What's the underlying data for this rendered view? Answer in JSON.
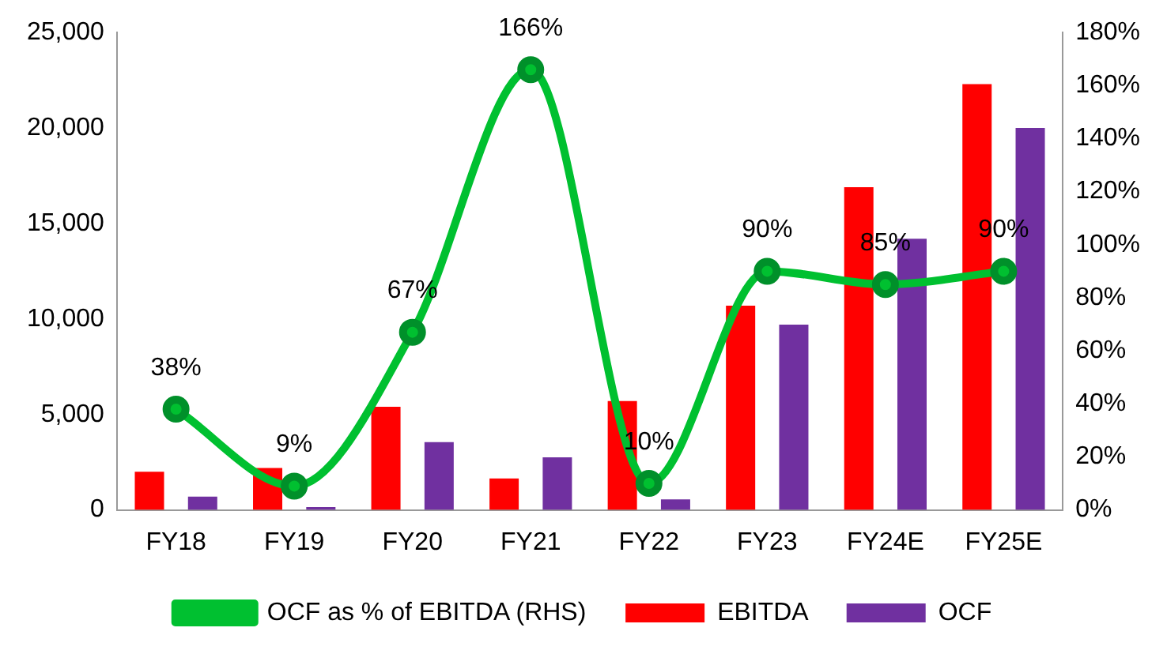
{
  "chart_data": {
    "type": "bar",
    "categories": [
      "FY18",
      "FY19",
      "FY20",
      "FY21",
      "FY22",
      "FY23",
      "FY24E",
      "FY25E"
    ],
    "series": [
      {
        "name": "EBITDA",
        "color": "#ff0000",
        "values": [
          2000,
          2200,
          5400,
          1650,
          5700,
          10700,
          16900,
          22300
        ]
      },
      {
        "name": "OCF",
        "color": "#7030a0",
        "values": [
          700,
          150,
          3550,
          2750,
          550,
          9700,
          14200,
          20000
        ]
      },
      {
        "name": "OCF as % of EBITDA (RHS)",
        "type": "line",
        "axis": "y2",
        "color": "#00c030",
        "marker": "circle",
        "values": [
          38,
          9,
          67,
          166,
          10,
          90,
          85,
          90
        ],
        "value_labels": [
          "38%",
          "9%",
          "67%",
          "166%",
          "10%",
          "90%",
          "85%",
          "90%"
        ]
      }
    ],
    "ylim": [
      0,
      25000
    ],
    "yticks": [
      {
        "value": 0,
        "label": "0"
      },
      {
        "value": 5000,
        "label": "5,000"
      },
      {
        "value": 10000,
        "label": "10,000"
      },
      {
        "value": 15000,
        "label": "15,000"
      },
      {
        "value": 20000,
        "label": "20,000"
      },
      {
        "value": 25000,
        "label": "25,000"
      }
    ],
    "y2lim": [
      0,
      180
    ],
    "y2ticks": [
      {
        "value": 0,
        "label": "0%"
      },
      {
        "value": 20,
        "label": "20%"
      },
      {
        "value": 40,
        "label": "40%"
      },
      {
        "value": 60,
        "label": "60%"
      },
      {
        "value": 80,
        "label": "80%"
      },
      {
        "value": 100,
        "label": "100%"
      },
      {
        "value": 120,
        "label": "120%"
      },
      {
        "value": 140,
        "label": "140%"
      },
      {
        "value": 160,
        "label": "160%"
      },
      {
        "value": 180,
        "label": "180%"
      }
    ],
    "grid": false,
    "legend": "bottom"
  }
}
